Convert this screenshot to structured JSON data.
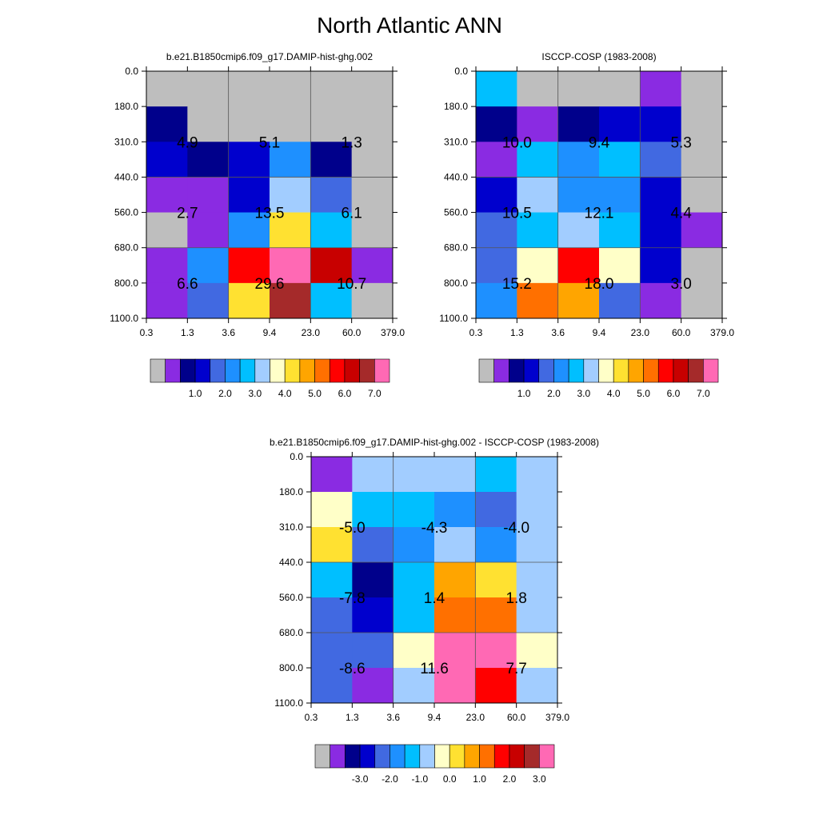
{
  "title": "North Atlantic ANN",
  "colors": {
    "palette_abs": [
      "#bebebe",
      "#8a2be2",
      "#00008b",
      "#0000cd",
      "#4169e1",
      "#1e90ff",
      "#00bfff",
      "#a2cdff",
      "#ffffc8",
      "#ffe131",
      "#ffa500",
      "#ff7000",
      "#ff0000",
      "#c80000",
      "#a52a2a",
      "#ff69b4"
    ],
    "palette_diff": [
      "#bebebe",
      "#8a2be2",
      "#00008b",
      "#0000cd",
      "#4169e1",
      "#1e90ff",
      "#00bfff",
      "#a2cdff",
      "#ffffc8",
      "#ffe131",
      "#ffa500",
      "#ff7000",
      "#ff0000",
      "#c80000",
      "#a52a2a",
      "#ff69b4"
    ]
  },
  "chart_data": [
    {
      "type": "heatmap",
      "title": "b.e21.B1850cmip6.f09_g17.DAMIP-hist-ghg.002",
      "x_ticks": [
        "0.3",
        "1.3",
        "3.6",
        "9.4",
        "23.0",
        "60.0",
        "379.0"
      ],
      "y_ticks": [
        "0.0",
        "180.0",
        "310.0",
        "440.0",
        "560.0",
        "680.0",
        "800.0",
        "1100.0"
      ],
      "cells": [
        [
          0,
          0,
          0,
          0,
          0,
          0
        ],
        [
          2,
          0,
          0,
          0,
          0,
          0
        ],
        [
          3,
          2,
          3,
          5,
          2,
          0
        ],
        [
          1,
          1,
          3,
          7,
          4,
          0
        ],
        [
          0,
          1,
          5,
          9,
          6,
          0
        ],
        [
          1,
          5,
          12,
          15,
          13,
          1
        ],
        [
          1,
          4,
          9,
          14,
          6,
          0
        ]
      ],
      "annotations": [
        [
          4.9,
          5.1,
          1.3
        ],
        [
          2.7,
          13.5,
          6.1
        ],
        [
          6.6,
          29.6,
          10.7
        ]
      ],
      "colorbar_labels": [
        "1.0",
        "2.0",
        "3.0",
        "4.0",
        "5.0",
        "6.0",
        "7.0"
      ]
    },
    {
      "type": "heatmap",
      "title": "ISCCP-COSP (1983-2008)",
      "x_ticks": [
        "0.3",
        "1.3",
        "3.6",
        "9.4",
        "23.0",
        "60.0",
        "379.0"
      ],
      "y_ticks": [
        "0.0",
        "180.0",
        "310.0",
        "440.0",
        "560.0",
        "680.0",
        "800.0",
        "1100.0"
      ],
      "cells": [
        [
          6,
          0,
          0,
          0,
          1,
          0
        ],
        [
          2,
          1,
          2,
          3,
          3,
          0
        ],
        [
          1,
          6,
          5,
          6,
          4,
          0
        ],
        [
          3,
          7,
          5,
          5,
          3,
          0
        ],
        [
          4,
          6,
          7,
          6,
          3,
          1
        ],
        [
          4,
          8,
          12,
          8,
          3,
          0
        ],
        [
          5,
          11,
          10,
          4,
          1,
          0
        ]
      ],
      "annotations": [
        [
          10.0,
          9.4,
          5.3
        ],
        [
          10.5,
          12.1,
          4.4
        ],
        [
          15.2,
          18.0,
          3.0
        ]
      ],
      "colorbar_labels": [
        "1.0",
        "2.0",
        "3.0",
        "4.0",
        "5.0",
        "6.0",
        "7.0"
      ]
    },
    {
      "type": "heatmap",
      "title": "b.e21.B1850cmip6.f09_g17.DAMIP-hist-ghg.002 - ISCCP-COSP (1983-2008)",
      "x_ticks": [
        "0.3",
        "1.3",
        "3.6",
        "9.4",
        "23.0",
        "60.0",
        "379.0"
      ],
      "y_ticks": [
        "0.0",
        "180.0",
        "310.0",
        "440.0",
        "560.0",
        "680.0",
        "800.0",
        "1100.0"
      ],
      "cells": [
        [
          1,
          7,
          7,
          7,
          6,
          7
        ],
        [
          8,
          6,
          6,
          5,
          4,
          7
        ],
        [
          9,
          4,
          5,
          7,
          5,
          7
        ],
        [
          6,
          2,
          6,
          10,
          9,
          7
        ],
        [
          4,
          3,
          6,
          11,
          11,
          7
        ],
        [
          4,
          4,
          8,
          15,
          15,
          8
        ],
        [
          4,
          1,
          7,
          15,
          12,
          7
        ]
      ],
      "annotations": [
        [
          -5.0,
          -4.3,
          -4.0
        ],
        [
          -7.8,
          1.4,
          1.8
        ],
        [
          -8.6,
          11.6,
          7.7
        ]
      ],
      "colorbar_labels": [
        "-3.0",
        "-2.0",
        "-1.0",
        "0.0",
        "1.0",
        "2.0",
        "3.0"
      ]
    }
  ]
}
